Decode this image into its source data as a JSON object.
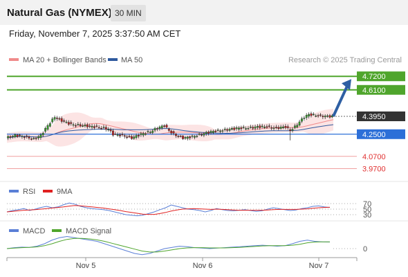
{
  "header": {
    "instrument": "Natural Gas (NYMEX)",
    "timeframe": "30 MIN",
    "datetime": "Friday, November 7, 2025 3:37:50 AM CET"
  },
  "colors": {
    "resistance": "#4fa52c",
    "support": "#2c6fd8",
    "target": "#2e5fa3",
    "last_price": "#333333",
    "secondary_level": "#e05050",
    "bollinger": "#f08a8a",
    "ma50": "#2f5a9e",
    "rsi": "#5a7fd6",
    "rsi_9ma": "#e02020",
    "macd": "#5a7fd6",
    "macd_signal": "#4fa52c"
  },
  "chart_data": [
    {
      "type": "candlestick",
      "legend": [
        {
          "name": "MA 20 + Bollinger Bands",
          "color": "#f08a8a"
        },
        {
          "name": "MA 50",
          "color": "#2f5a9e"
        }
      ],
      "watermark": "Research © 2025 Trading Central",
      "x_ticks": [
        "Nov 5",
        "Nov 6",
        "Nov 7"
      ],
      "ylim": [
        3.9,
        4.8
      ],
      "levels": [
        {
          "value": 4.72,
          "label": "4.7200",
          "kind": "resistance"
        },
        {
          "value": 4.61,
          "label": "4.6100",
          "kind": "resistance"
        },
        {
          "value": 4.395,
          "label": "4.3950",
          "kind": "last"
        },
        {
          "value": 4.25,
          "label": "4.2500",
          "kind": "pivot"
        },
        {
          "value": 4.07,
          "label": "4.0700",
          "kind": "support"
        },
        {
          "value": 3.97,
          "label": "3.9700",
          "kind": "support"
        }
      ],
      "price_path": [
        [
          0,
          4.22
        ],
        [
          4,
          4.24
        ],
        [
          8,
          4.23
        ],
        [
          12,
          4.21
        ],
        [
          15,
          4.24
        ],
        [
          18,
          4.32
        ],
        [
          21,
          4.39
        ],
        [
          24,
          4.36
        ],
        [
          28,
          4.33
        ],
        [
          33,
          4.32
        ],
        [
          38,
          4.31
        ],
        [
          42,
          4.3
        ],
        [
          44,
          4.29
        ],
        [
          46,
          4.25
        ],
        [
          50,
          4.24
        ],
        [
          54,
          4.22
        ],
        [
          58,
          4.25
        ],
        [
          62,
          4.27
        ],
        [
          65,
          4.3
        ],
        [
          68,
          4.32
        ],
        [
          70,
          4.28
        ],
        [
          72,
          4.25
        ],
        [
          76,
          4.22
        ],
        [
          80,
          4.23
        ],
        [
          84,
          4.25
        ],
        [
          88,
          4.27
        ],
        [
          92,
          4.28
        ],
        [
          96,
          4.29
        ],
        [
          100,
          4.3
        ],
        [
          104,
          4.3
        ],
        [
          108,
          4.31
        ],
        [
          112,
          4.31
        ],
        [
          116,
          4.3
        ],
        [
          120,
          4.31
        ],
        [
          122,
          4.28
        ],
        [
          124,
          4.31
        ],
        [
          126,
          4.35
        ],
        [
          128,
          4.39
        ],
        [
          130,
          4.41
        ],
        [
          134,
          4.4
        ],
        [
          138,
          4.395
        ],
        [
          140,
          4.395
        ]
      ],
      "target": {
        "from": 4.395,
        "to": 4.72
      }
    },
    {
      "type": "line",
      "legend": [
        {
          "name": "RSI",
          "color": "#5a7fd6"
        },
        {
          "name": "9MA",
          "color": "#e02020"
        }
      ],
      "ylim": [
        20,
        80
      ],
      "y_ticks": [
        70,
        50,
        30
      ],
      "series": [
        {
          "name": "RSI",
          "values": [
            40,
            45,
            48,
            52,
            45,
            50,
            56,
            60,
            55,
            58,
            66,
            72,
            68,
            60,
            55,
            52,
            50,
            48,
            45,
            40,
            35,
            30,
            28,
            26,
            28,
            34,
            40,
            48,
            55,
            65,
            60,
            55,
            50,
            48,
            45,
            40,
            45,
            52,
            48,
            45,
            44,
            46,
            48,
            45,
            42,
            44,
            50,
            55,
            52,
            48,
            45,
            47,
            52,
            55,
            60,
            62,
            58,
            56
          ]
        },
        {
          "name": "9MA",
          "values": [
            40,
            42,
            44,
            46,
            47,
            48,
            50,
            52,
            54,
            56,
            58,
            61,
            63,
            62,
            60,
            58,
            56,
            54,
            51,
            48,
            45,
            41,
            38,
            35,
            32,
            31,
            31,
            34,
            38,
            43,
            47,
            50,
            51,
            52,
            51,
            50,
            49,
            50,
            49,
            48,
            47,
            46,
            46,
            46,
            46,
            46,
            47,
            48,
            49,
            49,
            49,
            49,
            50,
            51,
            53,
            55,
            56,
            57
          ]
        }
      ]
    },
    {
      "type": "line",
      "legend": [
        {
          "name": "MACD",
          "color": "#5a7fd6"
        },
        {
          "name": "MACD Signal",
          "color": "#4fa52c"
        }
      ],
      "y_ticks": [
        0
      ],
      "series": [
        {
          "name": "MACD",
          "values": [
            0,
            0.004,
            0.006,
            0.005,
            0.01,
            0.02,
            0.035,
            0.045,
            0.05,
            0.045,
            0.04,
            0.035,
            0.03,
            0.02,
            0.01,
            0,
            -0.01,
            -0.02,
            -0.025,
            -0.02,
            -0.01,
            0,
            0.005,
            0.01,
            0.008,
            0.004,
            0.002,
            0,
            0.002,
            0.004,
            0.006,
            0.008,
            0.01,
            0.012,
            0.014,
            0.012,
            0.01,
            0.012,
            0.02,
            0.03,
            0.035,
            0.03,
            0.028,
            0.027
          ]
        },
        {
          "name": "MACD Signal",
          "values": [
            0,
            0.002,
            0.004,
            0.005,
            0.007,
            0.012,
            0.02,
            0.03,
            0.038,
            0.042,
            0.042,
            0.04,
            0.036,
            0.03,
            0.022,
            0.014,
            0.006,
            -0.002,
            -0.01,
            -0.014,
            -0.014,
            -0.01,
            -0.005,
            0,
            0.003,
            0.004,
            0.004,
            0.003,
            0.003,
            0.003,
            0.004,
            0.005,
            0.007,
            0.009,
            0.011,
            0.012,
            0.012,
            0.012,
            0.014,
            0.018,
            0.024,
            0.027,
            0.028,
            0.028
          ]
        }
      ]
    }
  ]
}
